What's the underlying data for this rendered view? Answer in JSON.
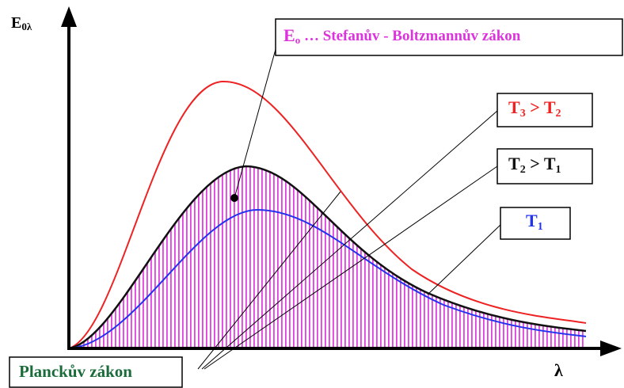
{
  "axes": {
    "y_label": [
      "E",
      "0λ"
    ],
    "x_label": "λ"
  },
  "labels": {
    "stefan": [
      "E",
      "o",
      " … Stefanův - Boltzmannův zákon"
    ],
    "t3": [
      "T",
      "3",
      " > T",
      "2"
    ],
    "t2": [
      "T",
      "2",
      " > T",
      "1"
    ],
    "t1": [
      "T",
      "1"
    ],
    "planck": "Planckův zákon"
  }
}
